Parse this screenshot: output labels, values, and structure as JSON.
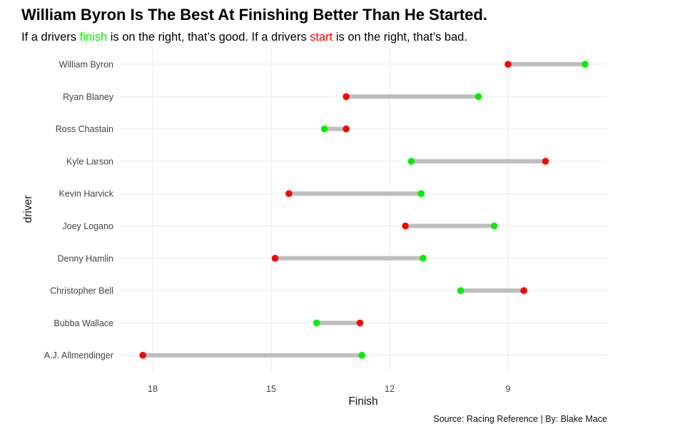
{
  "title": "William Byron Is The Best At Finishing Better Than He Started.",
  "subtitle": {
    "part1": "If a drivers ",
    "finish_word": "finish",
    "part2": " is on the right, that’s good. If a drivers ",
    "start_word": "start",
    "part3": " is on the right, that’s bad."
  },
  "caption": "Source: Racing Reference | By: Blake Mace",
  "colors": {
    "start": "#ff0000",
    "finish": "#00ee00",
    "segment": "#bebebe",
    "grid": "#ebebeb"
  },
  "chart_data": {
    "type": "dumbbell",
    "xlabel": "Finish",
    "ylabel": "driver",
    "x_reversed": true,
    "xlim": [
      18.25,
      6.7
    ],
    "xticks": [
      18,
      15,
      12,
      9
    ],
    "grid": true,
    "drivers": [
      {
        "driver": "William Byron",
        "start": 9.0,
        "finish": 7.05
      },
      {
        "driver": "Ryan Blaney",
        "start": 13.1,
        "finish": 9.75
      },
      {
        "driver": "Ross Chastain",
        "start": 13.1,
        "finish": 13.65
      },
      {
        "driver": "Kyle Larson",
        "start": 8.05,
        "finish": 11.45
      },
      {
        "driver": "Kevin Harvick",
        "start": 14.55,
        "finish": 11.2
      },
      {
        "driver": "Joey Logano",
        "start": 11.6,
        "finish": 9.35
      },
      {
        "driver": "Denny Hamlin",
        "start": 14.9,
        "finish": 11.15
      },
      {
        "driver": "Christopher Bell",
        "start": 8.6,
        "finish": 10.2
      },
      {
        "driver": "Bubba Wallace",
        "start": 12.75,
        "finish": 13.85
      },
      {
        "driver": "A.J. Allmendinger",
        "start": 18.25,
        "finish": 12.7
      }
    ]
  }
}
